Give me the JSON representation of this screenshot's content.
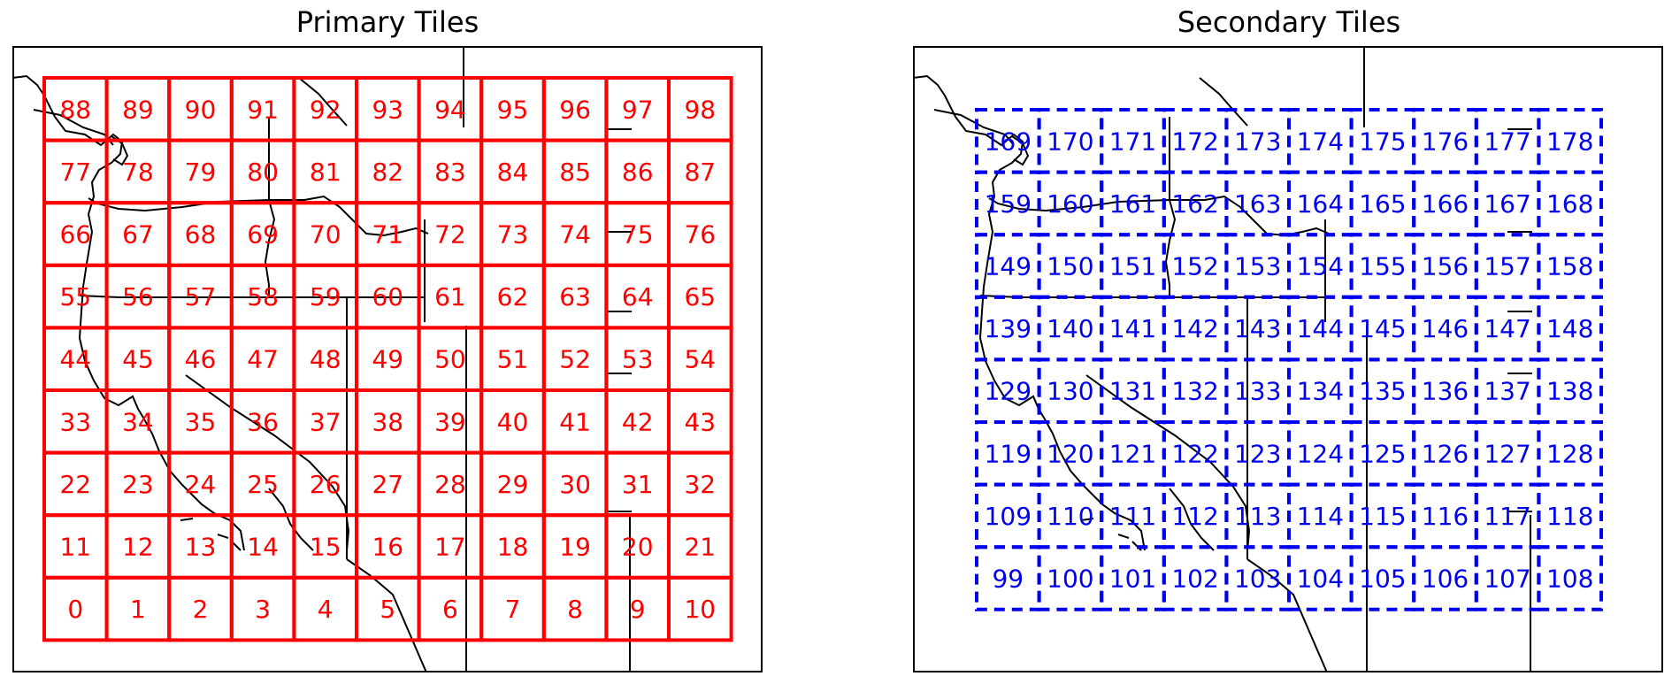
{
  "panels": {
    "primary": {
      "title": "Primary Tiles",
      "tile_color": "#ff0000",
      "line_style": "solid",
      "grid": {
        "columns": 11,
        "rows": 9,
        "first_index": 0,
        "numbering": "left-to-right, bottom-to-top"
      },
      "tile_ids": [
        [
          88,
          89,
          90,
          91,
          92,
          93,
          94,
          95,
          96,
          97,
          98
        ],
        [
          77,
          78,
          79,
          80,
          81,
          82,
          83,
          84,
          85,
          86,
          87
        ],
        [
          66,
          67,
          68,
          69,
          70,
          71,
          72,
          73,
          74,
          75,
          76
        ],
        [
          55,
          56,
          57,
          58,
          59,
          60,
          61,
          62,
          63,
          64,
          65
        ],
        [
          44,
          45,
          46,
          47,
          48,
          49,
          50,
          51,
          52,
          53,
          54
        ],
        [
          33,
          34,
          35,
          36,
          37,
          38,
          39,
          40,
          41,
          42,
          43
        ],
        [
          22,
          23,
          24,
          25,
          26,
          27,
          28,
          29,
          30,
          31,
          32
        ],
        [
          11,
          12,
          13,
          14,
          15,
          16,
          17,
          18,
          19,
          20,
          21
        ],
        [
          0,
          1,
          2,
          3,
          4,
          5,
          6,
          7,
          8,
          9,
          10
        ]
      ]
    },
    "secondary": {
      "title": "Secondary Tiles",
      "tile_color": "#0000ee",
      "line_style": "dashed",
      "grid": {
        "columns": 10,
        "rows": 8,
        "first_index": 99,
        "numbering": "left-to-right, bottom-to-top"
      },
      "tile_ids": [
        [
          169,
          170,
          171,
          172,
          173,
          174,
          175,
          176,
          177,
          178
        ],
        [
          159,
          160,
          161,
          162,
          163,
          164,
          165,
          166,
          167,
          168
        ],
        [
          149,
          150,
          151,
          152,
          153,
          154,
          155,
          156,
          157,
          158
        ],
        [
          139,
          140,
          141,
          142,
          143,
          144,
          145,
          146,
          147,
          148
        ],
        [
          129,
          130,
          131,
          132,
          133,
          134,
          135,
          136,
          137,
          138
        ],
        [
          119,
          120,
          121,
          122,
          123,
          124,
          125,
          126,
          127,
          128
        ],
        [
          109,
          110,
          111,
          112,
          113,
          114,
          115,
          116,
          117,
          118
        ],
        [
          99,
          100,
          101,
          102,
          103,
          104,
          105,
          106,
          107,
          108
        ]
      ]
    }
  },
  "map": {
    "region": "western United States and southwestern Canada",
    "boundary_color": "#000000",
    "features": [
      "coastline",
      "state-borders",
      "international-border"
    ]
  }
}
